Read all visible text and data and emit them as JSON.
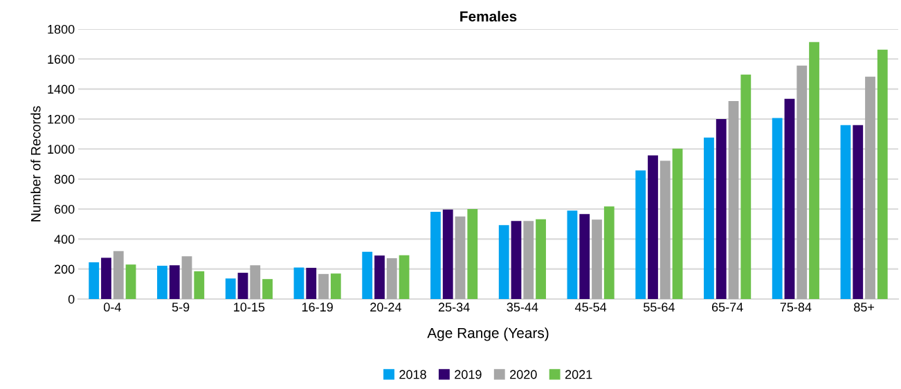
{
  "chart_data": {
    "type": "bar",
    "title": "Females",
    "xlabel": "Age Range (Years)",
    "ylabel": "Number of Records",
    "categories": [
      "0-4",
      "5-9",
      "10-15",
      "16-19",
      "20-24",
      "25-34",
      "35-44",
      "45-54",
      "55-64",
      "65-74",
      "75-84",
      "85+"
    ],
    "series": [
      {
        "name": "2018",
        "color": "#00a2ef",
        "values": [
          245,
          222,
          137,
          210,
          315,
          582,
          493,
          590,
          857,
          1077,
          1207,
          1160
        ]
      },
      {
        "name": "2019",
        "color": "#32006e",
        "values": [
          275,
          225,
          175,
          208,
          290,
          597,
          520,
          567,
          958,
          1200,
          1335,
          1160
        ]
      },
      {
        "name": "2020",
        "color": "#a6a6a6",
        "values": [
          320,
          285,
          225,
          167,
          272,
          550,
          520,
          530,
          922,
          1320,
          1557,
          1483
        ]
      },
      {
        "name": "2021",
        "color": "#6cc04a",
        "values": [
          230,
          185,
          133,
          170,
          292,
          600,
          532,
          617,
          1003,
          1497,
          1713,
          1663
        ]
      }
    ],
    "ylim": [
      0,
      1800
    ],
    "yticks": [
      0,
      200,
      400,
      600,
      800,
      1000,
      1200,
      1400,
      1600,
      1800
    ],
    "grid": "y",
    "legend": "bottom"
  }
}
